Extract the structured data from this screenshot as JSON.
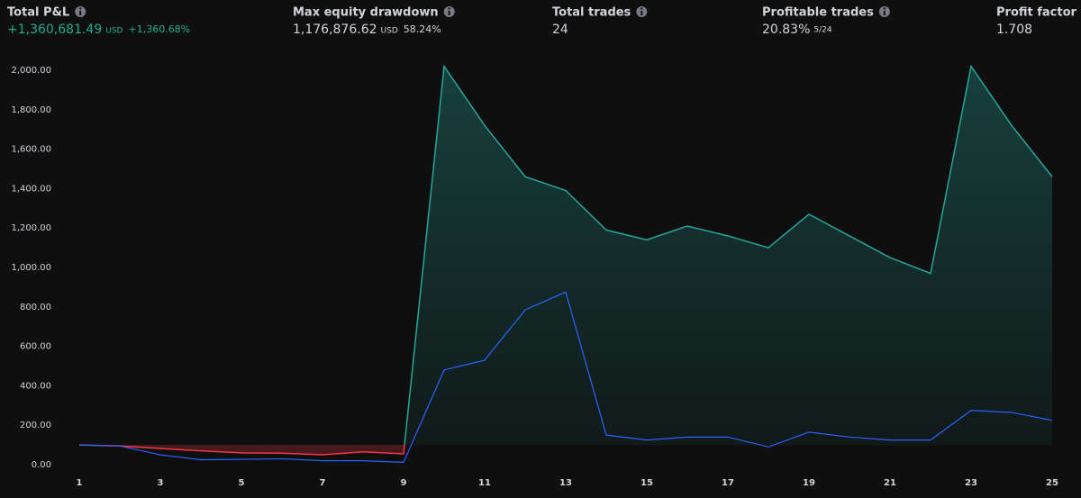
{
  "stats": [
    {
      "label": "Total P&L",
      "value": "+1,360,681.49",
      "unit": "USD",
      "extra": "+1,360.68%",
      "color": "#22ab94"
    },
    {
      "label": "Max equity drawdown",
      "value": "1,176,876.62",
      "unit": "USD",
      "extra": "58.24%"
    },
    {
      "label": "Total trades",
      "value": "24"
    },
    {
      "label": "Profitable trades",
      "value": "20.83%",
      "extra": "5/24"
    },
    {
      "label": "Profit factor",
      "value": "1.708"
    }
  ],
  "chart_data": {
    "type": "line",
    "x": [
      1,
      2,
      3,
      4,
      5,
      6,
      7,
      8,
      9,
      10,
      11,
      12,
      13,
      14,
      15,
      16,
      17,
      18,
      19,
      20,
      21,
      22,
      23,
      24,
      25
    ],
    "series": [
      {
        "color": "#26a69a",
        "below_color": "#f23645",
        "fill": true,
        "values": [
          100,
          95,
          82,
          70,
          60,
          58,
          50,
          65,
          55,
          2020,
          1720,
          1460,
          1390,
          1190,
          1140,
          1210,
          1160,
          1100,
          1270,
          1160,
          1050,
          970,
          2020,
          1720,
          1460
        ]
      },
      {
        "color": "#2962ff",
        "values": [
          100,
          95,
          50,
          25,
          27,
          30,
          20,
          20,
          12,
          480,
          530,
          785,
          875,
          150,
          125,
          140,
          140,
          90,
          165,
          140,
          125,
          125,
          275,
          265,
          225
        ]
      }
    ],
    "xlim": [
      1,
      25
    ],
    "xticks": [
      1,
      3,
      5,
      7,
      9,
      11,
      13,
      15,
      17,
      19,
      21,
      23,
      25
    ],
    "ylim": [
      0,
      2000
    ],
    "yticks": [
      {
        "value": 0,
        "label": "0.00"
      },
      {
        "value": 200,
        "label": "200.00"
      },
      {
        "value": 400,
        "label": "400.00"
      },
      {
        "value": 600,
        "label": "600.00"
      },
      {
        "value": 800,
        "label": "800.00"
      },
      {
        "value": 1000,
        "label": "1,000.00"
      },
      {
        "value": 1200,
        "label": "1,200.00"
      },
      {
        "value": 1400,
        "label": "1,400.00"
      },
      {
        "value": 1600,
        "label": "1,600.00"
      },
      {
        "value": 1800,
        "label": "1,800.00"
      },
      {
        "value": 2000,
        "label": "2,000.00"
      }
    ]
  }
}
